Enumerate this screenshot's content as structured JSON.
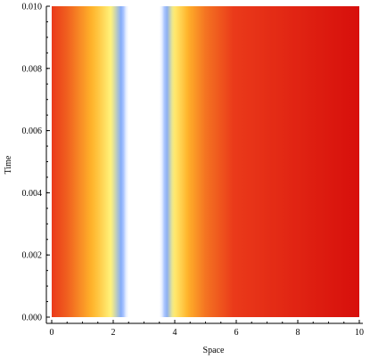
{
  "chart_data": {
    "type": "heatmap",
    "title": "",
    "xlabel": "Space",
    "ylabel": "Time",
    "xlim": [
      0,
      10
    ],
    "ylim": [
      0,
      0.01
    ],
    "x_ticks": [
      "0",
      "2",
      "4",
      "6",
      "8",
      "10"
    ],
    "x_tick_values": [
      0,
      2,
      4,
      6,
      8,
      10
    ],
    "y_ticks": [
      "0.000",
      "0.002",
      "0.004",
      "0.006",
      "0.008",
      "0.010"
    ],
    "y_tick_values": [
      0,
      0.002,
      0.004,
      0.006,
      0.008,
      0.01
    ],
    "grid": false,
    "colormap": {
      "name": "temperature",
      "stops": [
        {
          "value": 0.0,
          "color": "#ffffff"
        },
        {
          "value": 0.08,
          "color": "#7fa8ff"
        },
        {
          "value": 0.18,
          "color": "#fff27a"
        },
        {
          "value": 0.32,
          "color": "#ffb32a"
        },
        {
          "value": 0.55,
          "color": "#ea3a1a"
        },
        {
          "value": 1.0,
          "color": "#d50a0a"
        }
      ]
    },
    "field": {
      "description_of_values_by_space": [
        {
          "x": 0.0,
          "value": 0.55
        },
        {
          "x": 0.5,
          "value": 0.48
        },
        {
          "x": 1.0,
          "value": 0.38
        },
        {
          "x": 1.5,
          "value": 0.28
        },
        {
          "x": 2.0,
          "value": 0.16
        },
        {
          "x": 2.3,
          "value": 0.07
        },
        {
          "x": 2.45,
          "value": 0.0
        },
        {
          "x": 3.55,
          "value": 0.0
        },
        {
          "x": 3.7,
          "value": 0.07
        },
        {
          "x": 4.0,
          "value": 0.2
        },
        {
          "x": 4.5,
          "value": 0.34
        },
        {
          "x": 5.0,
          "value": 0.44
        },
        {
          "x": 6.0,
          "value": 0.56
        },
        {
          "x": 7.0,
          "value": 0.66
        },
        {
          "x": 8.0,
          "value": 0.76
        },
        {
          "x": 9.0,
          "value": 0.86
        },
        {
          "x": 10.0,
          "value": 0.95
        }
      ]
    }
  }
}
